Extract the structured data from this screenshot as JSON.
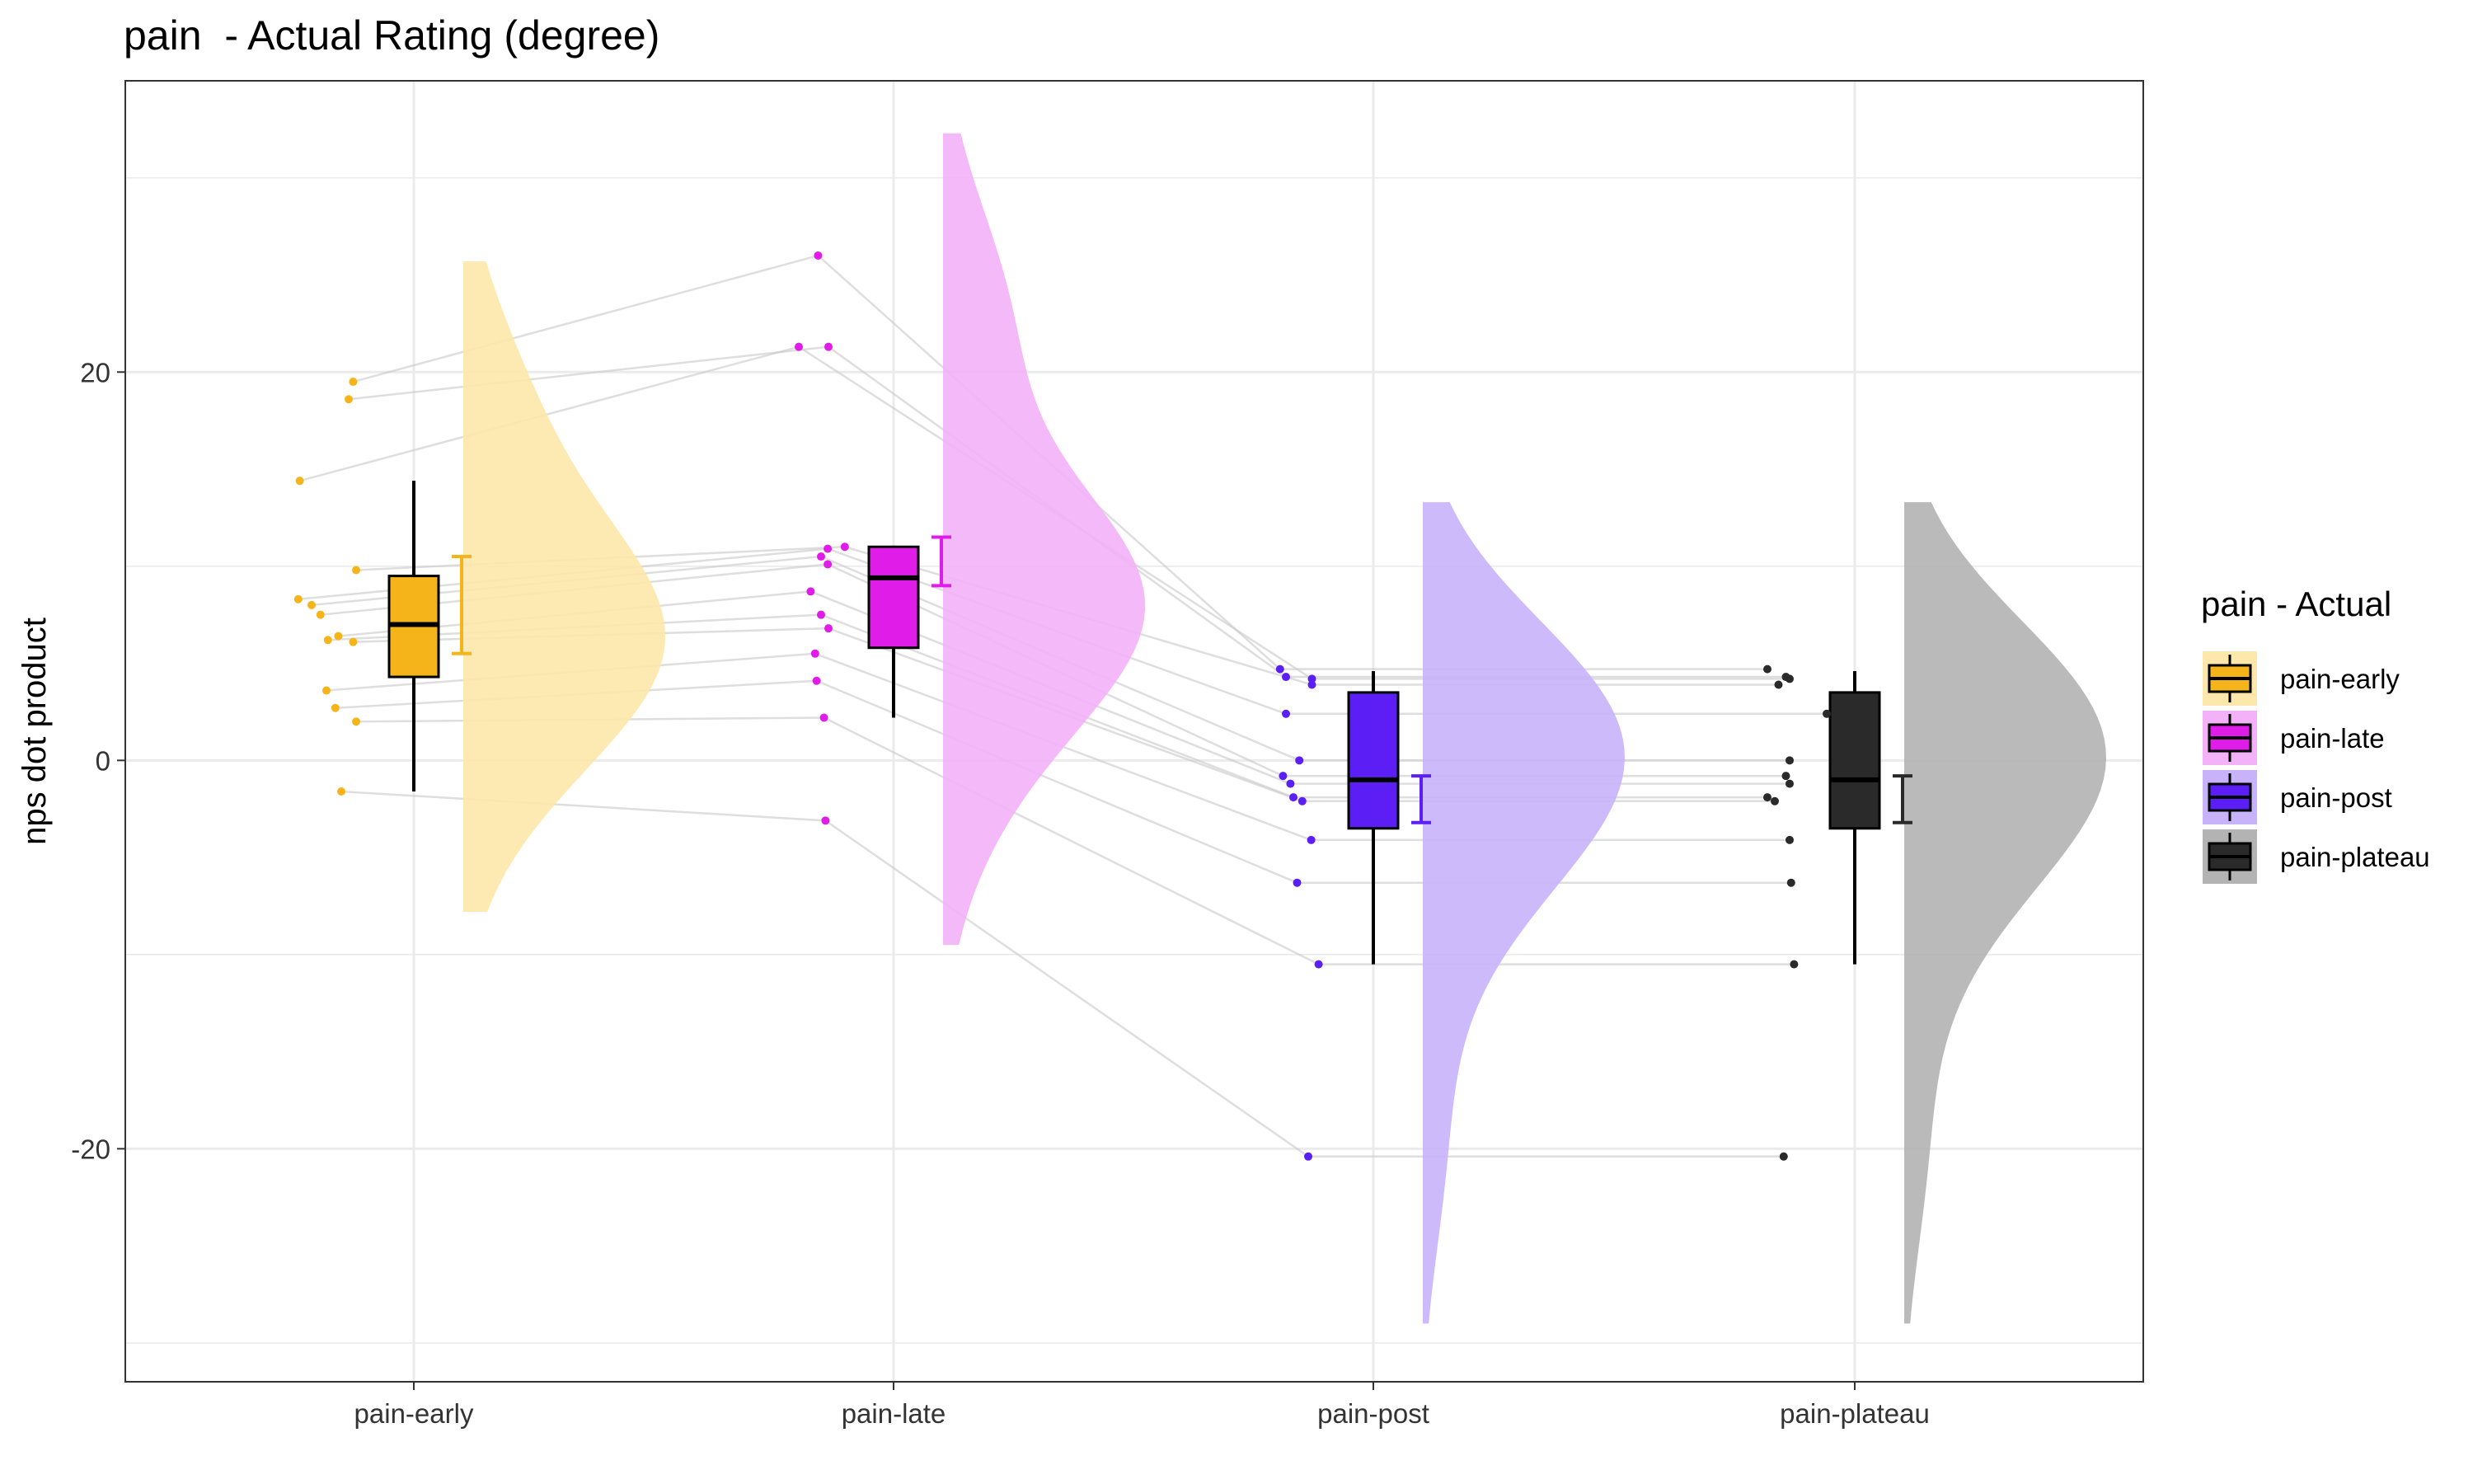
{
  "chart_data": {
    "type": "raincloud",
    "title": "pain  - Actual Rating (degree)",
    "xlabel": "",
    "ylabel": "nps dot product",
    "ylim": [
      -32,
      35
    ],
    "yticks": [
      -20,
      0,
      20
    ],
    "grid": true,
    "legend_title": "pain  - Actual",
    "legend_position": "right",
    "categories": [
      "pain-early",
      "pain-late",
      "pain-post",
      "pain-plateau"
    ],
    "groups": [
      {
        "name": "pain-early",
        "color": "#F5B51A",
        "cloud_color": "#FDE7AA",
        "box": {
          "min": -1.6,
          "q1": 4.3,
          "median": 7.0,
          "q3": 9.5,
          "max": 14.4
        },
        "errorbar": [
          5.5,
          10.5
        ],
        "cloud_range": [
          -7.8,
          25.7
        ],
        "cloud_mode": 6.5,
        "points": [
          19.5,
          18.6,
          14.4,
          9.8,
          8.3,
          8.0,
          7.5,
          6.4,
          6.2,
          6.1,
          3.6,
          2.7,
          2.0,
          -1.6
        ]
      },
      {
        "name": "pain-late",
        "color": "#E01CE8",
        "cloud_color": "#F3B1F7",
        "box": {
          "min": 2.2,
          "q1": 5.8,
          "median": 9.4,
          "q3": 11.0,
          "max": 11.0
        },
        "errorbar": [
          9.0,
          11.5
        ],
        "cloud_range": [
          -9.5,
          32.3
        ],
        "cloud_mode": 8.5,
        "points": [
          26.0,
          21.3,
          21.3,
          11.0,
          10.9,
          10.5,
          10.1,
          8.7,
          7.5,
          6.8,
          5.5,
          4.1,
          2.2,
          -3.1
        ]
      },
      {
        "name": "pain-post",
        "color": "#5B1EF5",
        "cloud_color": "#C8B3FA",
        "box": {
          "min": -10.5,
          "q1": -3.5,
          "median": -1.0,
          "q3": 3.5,
          "max": 4.6
        },
        "errorbar": [
          -3.2,
          -0.8
        ],
        "cloud_range": [
          -29.0,
          13.3
        ],
        "cloud_mode": 0.0,
        "points": [
          4.7,
          4.3,
          4.2,
          3.9,
          2.4,
          0.0,
          -0.8,
          -1.2,
          -1.9,
          -2.1,
          -4.1,
          -6.3,
          -10.5,
          -20.4
        ]
      },
      {
        "name": "pain-plateau",
        "color": "#2A2A2A",
        "cloud_color": "#B3B3B3",
        "box": {
          "min": -10.5,
          "q1": -3.5,
          "median": -1.0,
          "q3": 3.5,
          "max": 4.6
        },
        "errorbar": [
          -3.2,
          -0.8
        ],
        "cloud_range": [
          -29.0,
          13.3
        ],
        "cloud_mode": 0.0,
        "points": [
          4.7,
          4.3,
          4.2,
          3.9,
          2.4,
          0.0,
          -0.8,
          -1.2,
          -1.9,
          -2.1,
          -4.1,
          -6.3,
          -10.5,
          -20.4
        ]
      }
    ]
  }
}
